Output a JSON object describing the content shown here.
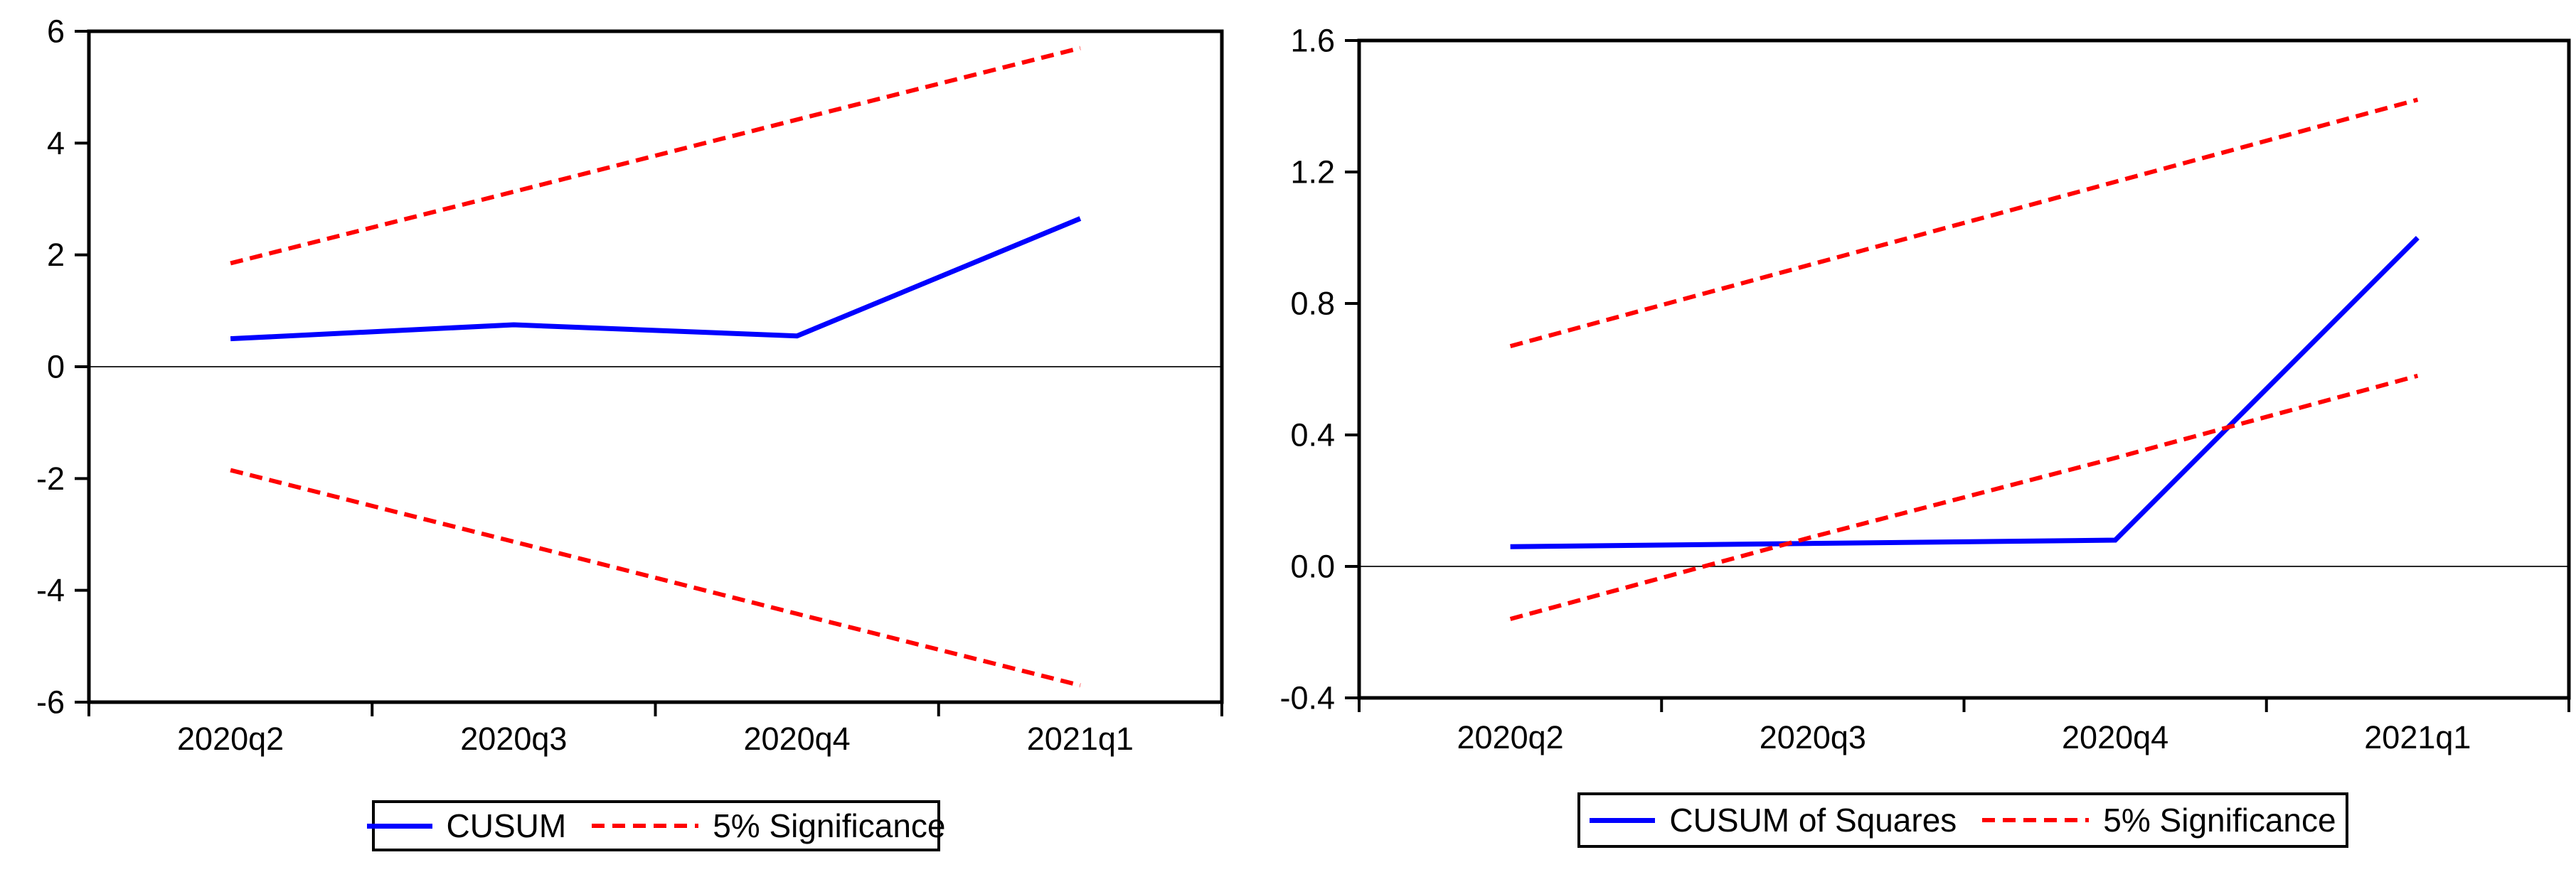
{
  "page": {
    "background": "#ffffff"
  },
  "colors": {
    "series_line": "#0000ff",
    "band_line": "#ff0000",
    "frame": "#000000",
    "zero_line": "#2a2a2a",
    "text": "#000000"
  },
  "chart_data": [
    {
      "type": "line",
      "title": "",
      "xlabel": "",
      "ylabel": "",
      "categories": [
        "2020q2",
        "2020q3",
        "2020q4",
        "2021q1"
      ],
      "series": [
        {
          "name": "CUSUM",
          "color": "#0000ff",
          "style": "solid",
          "values": [
            0.5,
            0.75,
            0.55,
            2.65
          ]
        },
        {
          "name": "5% Significance upper",
          "color": "#ff0000",
          "style": "dashed",
          "values": [
            1.85,
            3.13,
            4.42,
            5.7
          ]
        },
        {
          "name": "5% Significance lower",
          "color": "#ff0000",
          "style": "dashed",
          "values": [
            -1.85,
            -3.13,
            -4.42,
            -5.7
          ]
        }
      ],
      "ylim": [
        -6,
        6
      ],
      "yticks": [
        {
          "value": 6,
          "label": "6"
        },
        {
          "value": 4,
          "label": "4"
        },
        {
          "value": 2,
          "label": "2"
        },
        {
          "value": 0,
          "label": "0"
        },
        {
          "value": -2,
          "label": "-2"
        },
        {
          "value": -4,
          "label": "-4"
        },
        {
          "value": -6,
          "label": "-6"
        }
      ],
      "zero_line": true,
      "grid": false,
      "legend_position": "bottom",
      "legend": [
        {
          "label": "CUSUM",
          "color": "#0000ff",
          "style": "solid"
        },
        {
          "label": "5% Significance",
          "color": "#ff0000",
          "style": "dashed"
        }
      ]
    },
    {
      "type": "line",
      "title": "",
      "xlabel": "",
      "ylabel": "",
      "categories": [
        "2020q2",
        "2020q3",
        "2020q4",
        "2021q1"
      ],
      "series": [
        {
          "name": "CUSUM of Squares",
          "color": "#0000ff",
          "style": "solid",
          "values": [
            0.06,
            0.07,
            0.08,
            1.0
          ]
        },
        {
          "name": "5% Significance upper",
          "color": "#ff0000",
          "style": "dashed",
          "values": [
            0.67,
            0.92,
            1.17,
            1.42
          ]
        },
        {
          "name": "5% Significance lower",
          "color": "#ff0000",
          "style": "dashed",
          "values": [
            -0.16,
            0.09,
            0.33,
            0.58
          ]
        }
      ],
      "ylim": [
        -0.4,
        1.6
      ],
      "yticks": [
        {
          "value": 1.6,
          "label": "1.6"
        },
        {
          "value": 1.2,
          "label": "1.2"
        },
        {
          "value": 0.8,
          "label": "0.8"
        },
        {
          "value": 0.4,
          "label": "0.4"
        },
        {
          "value": 0.0,
          "label": "0.0"
        },
        {
          "value": -0.4,
          "label": "-0.4"
        }
      ],
      "zero_line": true,
      "grid": false,
      "legend_position": "bottom",
      "legend": [
        {
          "label": "CUSUM of Squares",
          "color": "#0000ff",
          "style": "solid"
        },
        {
          "label": "5% Significance",
          "color": "#ff0000",
          "style": "dashed"
        }
      ]
    }
  ]
}
